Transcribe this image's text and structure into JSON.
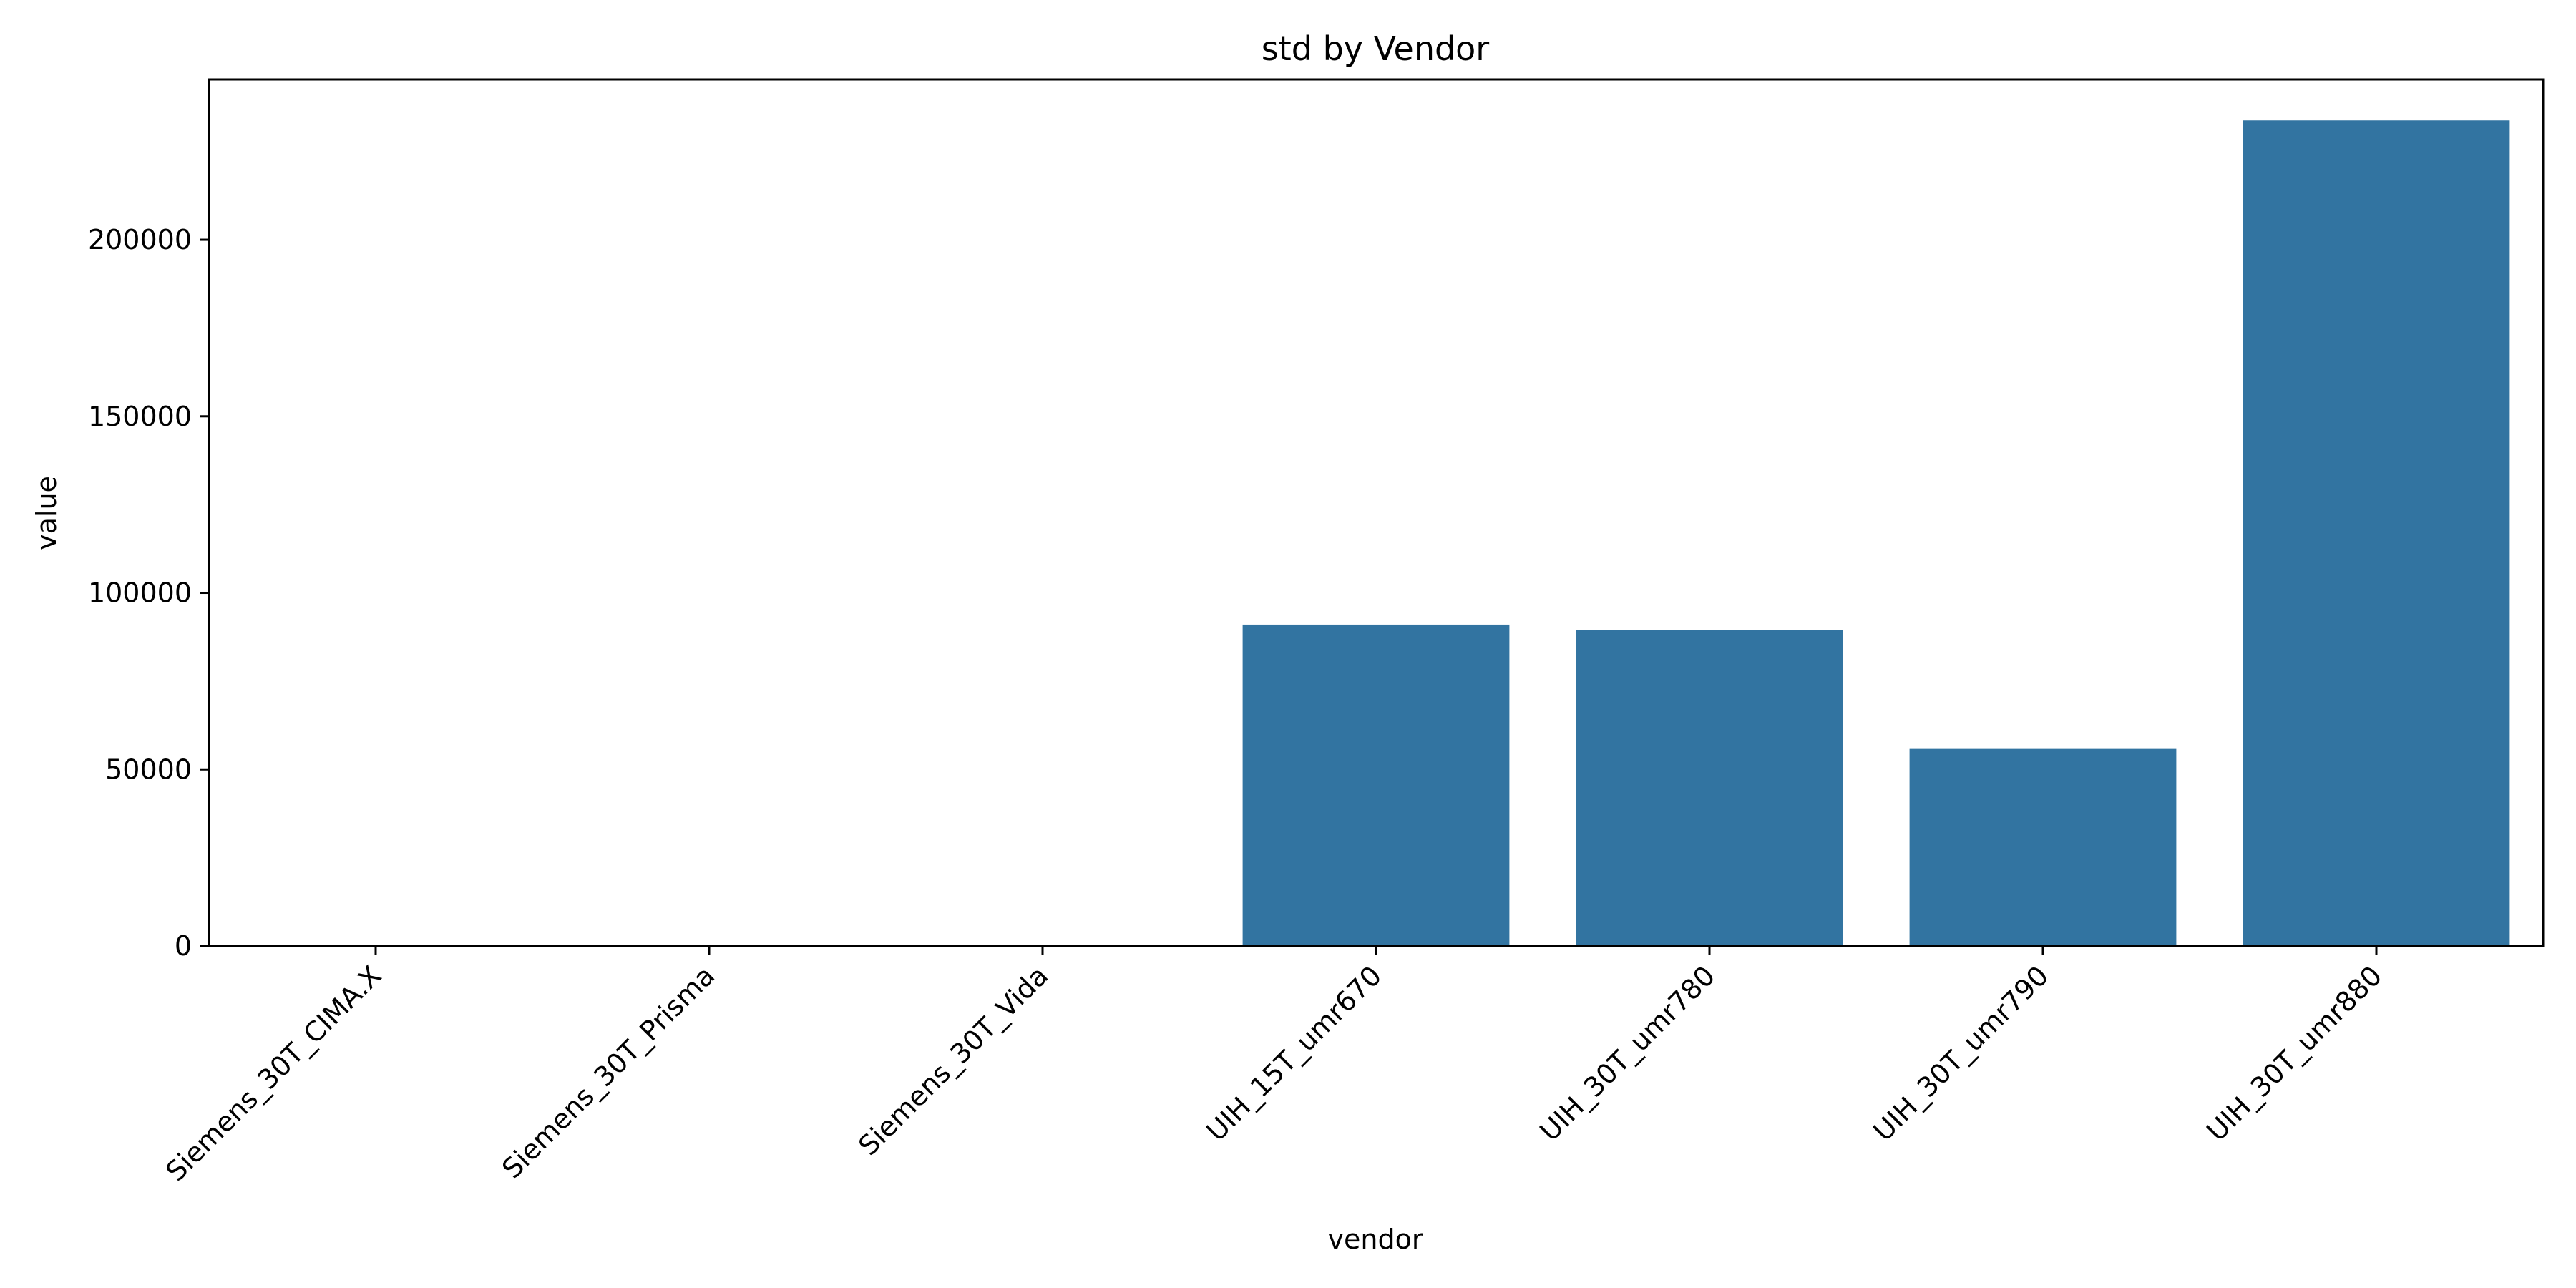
{
  "chart_data": {
    "type": "bar",
    "title": "std by Vendor",
    "xlabel": "vendor",
    "ylabel": "value",
    "categories": [
      "Siemens_30T_CIMA.X",
      "Siemens_30T_Prisma",
      "Siemens_30T_Vida",
      "UIH_15T_umr670",
      "UIH_30T_umr780",
      "UIH_30T_umr790",
      "UIH_30T_umr880"
    ],
    "values": [
      0,
      0,
      0,
      91000,
      89500,
      55800,
      233800
    ],
    "ylim": [
      0,
      245400
    ],
    "yticks": [
      0,
      50000,
      100000,
      150000,
      200000
    ],
    "ytick_labels": [
      "0",
      "50000",
      "100000",
      "150000",
      "200000"
    ],
    "grid": false,
    "bar_color": "#3274a1"
  }
}
